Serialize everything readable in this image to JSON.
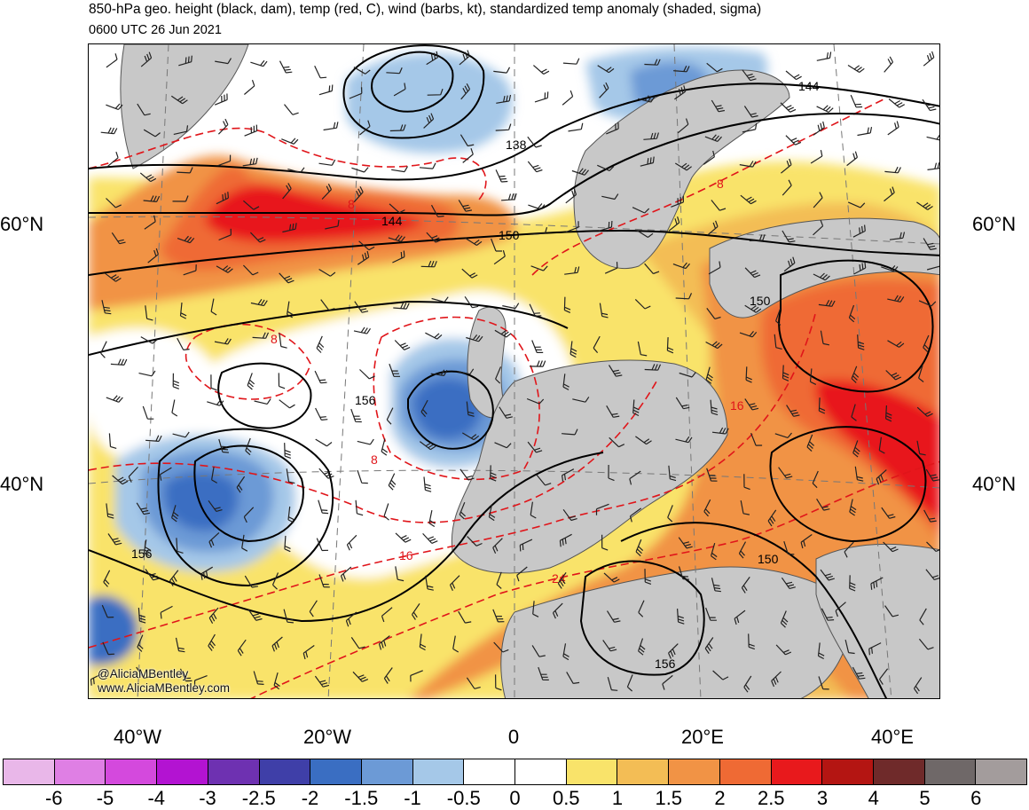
{
  "header": {
    "title": "850-hPa geo. height (black, dam), temp (red, C), wind (barbs, kt), standardized temp anomaly (shaded, sigma)",
    "valid_time": "0600 UTC 26 Jun 2021"
  },
  "map": {
    "lat_labels": [
      "60°N",
      "40°N"
    ],
    "lon_labels": [
      "40°W",
      "20°W",
      "0",
      "20°E",
      "40°E"
    ],
    "height_contour_labels": [
      "138",
      "144",
      "144",
      "150",
      "150",
      "150",
      "156",
      "156",
      "156"
    ],
    "temp_contour_labels": [
      "8",
      "8",
      "8",
      "8",
      "16",
      "16",
      "24"
    ],
    "credit": [
      "@AliciaMBentley",
      "www.AliciaMBentley.com"
    ],
    "colors": {
      "geopotential_contours": "#000000",
      "temperature_contours": "#e0151a",
      "land_masked": "#c8c8c8",
      "coastlines": "#555555"
    }
  },
  "colorbar": {
    "labels": [
      "-6",
      "-5",
      "-4",
      "-3",
      "-2.5",
      "-2",
      "-1.5",
      "-1",
      "-0.5",
      "0",
      "0.5",
      "1",
      "1.5",
      "2",
      "2.5",
      "3",
      "4",
      "5",
      "6"
    ],
    "colors": [
      "#e9b7e9",
      "#df7fe4",
      "#d449dd",
      "#b313d2",
      "#6e31b1",
      "#3f3fa8",
      "#3a6ec2",
      "#6c9ad6",
      "#a5c8e8",
      "#ffffff",
      "#ffffff",
      "#f9e36a",
      "#f3bd55",
      "#f19345",
      "#ef6a34",
      "#e8191c",
      "#b41512",
      "#6f2a2a",
      "#6f6868",
      "#a39c9c"
    ]
  }
}
